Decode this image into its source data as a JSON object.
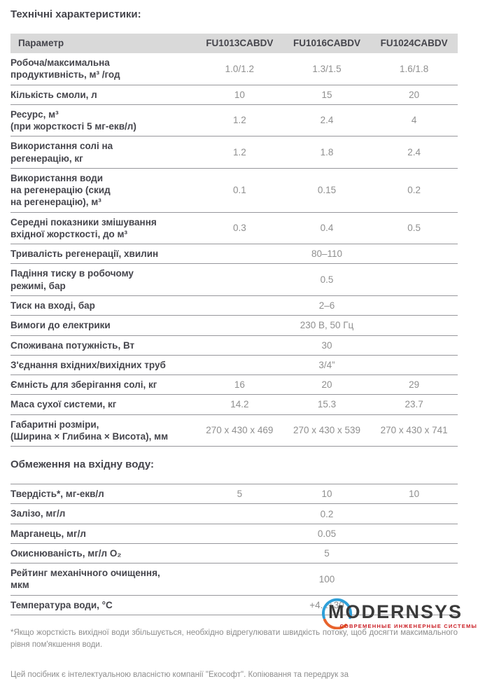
{
  "page": {
    "title": "Технічні характеристики:",
    "section2_title": "Обмеження на вхідну воду:"
  },
  "colors": {
    "header_bg": "#d9d9d9",
    "label_text": "#45454c",
    "value_text": "#8f8f8f",
    "row_border": "#97979c",
    "logo_text": "#3a3a3a",
    "logo_blue": "#2e9fd8",
    "logo_orange": "#e8632c",
    "logo_red": "#cb2027",
    "muted_text": "#8d8d8d"
  },
  "spec_table": {
    "columns": [
      "Параметр",
      "FU1013CABDV",
      "FU1016CABDV",
      "FU1024CABDV"
    ],
    "rows": [
      {
        "label": "Робоча/максимальна\nпродуктивність, м³ /год",
        "values": [
          "1.0/1.2",
          "1.3/1.5",
          "1.6/1.8"
        ]
      },
      {
        "label": "Кількість смоли, л",
        "values": [
          "10",
          "15",
          "20"
        ]
      },
      {
        "label": "Ресурс, м³\n(при жорсткості 5 мг-екв/л)",
        "values": [
          "1.2",
          "2.4",
          "4"
        ]
      },
      {
        "label": "Використання солі на\nрегенерацію, кг",
        "values": [
          "1.2",
          "1.8",
          "2.4"
        ]
      },
      {
        "label": "Використання води\nна регенерацію (скид\nна регенерацію), м³",
        "values": [
          "0.1",
          "0.15",
          "0.2"
        ]
      },
      {
        "label": "Середні показники змішування\nвхідної жорсткості, до м³",
        "values": [
          "0.3",
          "0.4",
          "0.5"
        ]
      },
      {
        "label": "Тривалість регенерації, хвилин",
        "span": "80–110"
      },
      {
        "label": "Падіння тиску в робочому\nрежимі, бар",
        "span": "0.5"
      },
      {
        "label": "Тиск на вході, бар",
        "span": "2–6"
      },
      {
        "label": "Вимоги до електрики",
        "span": "230 В, 50 Гц"
      },
      {
        "label": "Споживана потужність, Вт",
        "span": "30"
      },
      {
        "label": "З'єднання вхідних/вихідних труб",
        "span": "3/4”"
      },
      {
        "label": "Ємність для зберігання солі, кг",
        "values": [
          "16",
          "20",
          "29"
        ]
      },
      {
        "label": "Маса сухої системи, кг",
        "values": [
          "14.2",
          "15.3",
          "23.7"
        ]
      },
      {
        "label": "Габаритні розміри,\n(Ширина × Глибина × Висота), мм",
        "values": [
          "270 x 430 x 469",
          "270 x 430 x 539",
          "270 x 430 x 741"
        ]
      }
    ]
  },
  "limits_table": {
    "rows": [
      {
        "label": "Твердість*, мг-екв/л",
        "values": [
          "5",
          "10",
          "10"
        ]
      },
      {
        "label": "Залізо, мг/л",
        "span": "0.2"
      },
      {
        "label": "Марганець, мг/л",
        "span": "0.05"
      },
      {
        "label": "Окиснюваність, мг/л О₂",
        "span": "5"
      },
      {
        "label": "Рейтинг механічного очищення,\nмкм",
        "span": "100"
      },
      {
        "label": "Температура води, °С",
        "span": "+4...+30"
      }
    ]
  },
  "footnote": "*Якщо жорсткість вихідної води збільшується, необхідно відрегулювати швидкість потоку, щоб досягти максимального рівня пом'якшення води.",
  "copyright": "Цей посібник є інтелектуальною власністю компанії \"Екософт\". Копіювання та передрук за",
  "logo": {
    "name": "MODERNSYS",
    "tagline": "СОВРЕМЕННЫЕ ИНЖЕНЕРНЫЕ СИСТЕМЫ"
  }
}
